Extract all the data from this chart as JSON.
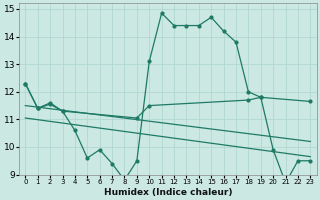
{
  "xlabel": "Humidex (Indice chaleur)",
  "background_color": "#cbe8e3",
  "grid_color": "#b0d8d0",
  "line_color": "#1e7a65",
  "xlim": [
    -0.5,
    23.5
  ],
  "ylim": [
    9,
    15.2
  ],
  "yticks": [
    9,
    10,
    11,
    12,
    13,
    14,
    15
  ],
  "xticks": [
    0,
    1,
    2,
    3,
    4,
    5,
    6,
    7,
    8,
    9,
    10,
    11,
    12,
    13,
    14,
    15,
    16,
    17,
    18,
    19,
    20,
    21,
    22,
    23
  ],
  "series1_x": [
    0,
    1,
    2,
    3,
    4,
    5,
    6,
    7,
    8,
    9,
    10,
    11,
    12,
    13,
    14,
    15,
    16,
    17,
    18,
    19,
    20,
    21,
    22,
    23
  ],
  "series1_y": [
    12.3,
    11.4,
    11.6,
    11.3,
    10.6,
    9.6,
    9.9,
    9.4,
    8.8,
    9.5,
    13.1,
    14.85,
    14.4,
    14.4,
    14.4,
    14.7,
    14.2,
    13.8,
    12.0,
    11.8,
    9.9,
    8.7,
    9.5,
    9.5
  ],
  "series2_x": [
    0,
    1,
    2,
    3,
    9,
    10,
    18,
    19,
    23
  ],
  "series2_y": [
    12.3,
    11.4,
    11.55,
    11.3,
    11.05,
    11.5,
    11.7,
    11.8,
    11.65
  ],
  "series3_x": [
    0,
    23
  ],
  "series3_y": [
    11.5,
    10.2
  ],
  "series4_x": [
    0,
    23
  ],
  "series4_y": [
    11.05,
    9.65
  ]
}
